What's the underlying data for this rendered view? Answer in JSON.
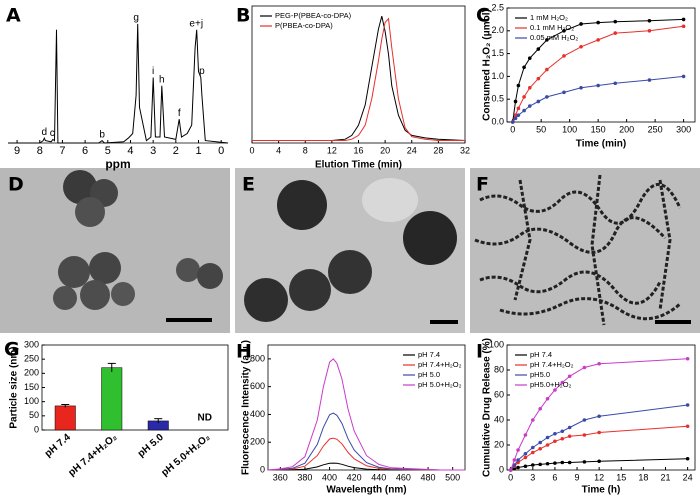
{
  "image_panels": [
    "D",
    "E",
    "F"
  ],
  "chart_data": [
    {
      "type": "line",
      "label": "A",
      "xlabel": "ppm",
      "x": [
        9.4,
        8.0,
        7.85,
        7.8,
        7.75,
        7.5,
        7.42,
        7.35,
        7.26,
        7.2,
        5.4,
        5.25,
        5.15,
        4.3,
        4.1,
        4.0,
        3.9,
        3.75,
        3.68,
        3.6,
        3.3,
        3.1,
        3.0,
        2.9,
        2.7,
        2.62,
        2.5,
        2.0,
        1.85,
        1.75,
        1.5,
        1.3,
        1.15,
        1.08,
        1.0,
        0.9,
        0.85,
        0.7,
        -0.3
      ],
      "values": [
        0,
        0,
        2,
        4,
        2,
        1,
        3,
        2,
        95,
        0,
        0,
        2,
        0,
        1,
        4,
        6,
        8,
        40,
        100,
        30,
        2,
        5,
        55,
        5,
        5,
        48,
        5,
        3,
        20,
        5,
        8,
        15,
        80,
        95,
        60,
        55,
        40,
        2,
        0
      ],
      "color": "#000000",
      "xlim": [
        9.4,
        -0.3
      ],
      "ylim": [
        0,
        115
      ],
      "xticks": [
        9,
        8,
        7,
        6,
        5,
        4,
        3,
        2,
        1,
        0
      ],
      "peak_labels": [
        {
          "text": "d",
          "x": 7.8
        },
        {
          "text": "c",
          "x": 7.45
        },
        {
          "text": "b",
          "x": 5.25
        },
        {
          "text": "g",
          "x": 3.75
        },
        {
          "text": "i",
          "x": 3.0
        },
        {
          "text": "h",
          "x": 2.62
        },
        {
          "text": "f",
          "x": 1.85
        },
        {
          "text": "e+j",
          "x": 1.1
        },
        {
          "text": "p",
          "x": 0.85
        }
      ]
    },
    {
      "type": "line",
      "label": "B",
      "xlabel": "Elution Time (min)",
      "x": [
        0,
        4,
        8,
        12,
        14,
        15,
        16,
        17,
        18,
        19,
        19.5,
        20,
        20.5,
        21,
        22,
        23,
        24,
        26,
        28,
        32
      ],
      "series": [
        {
          "name": "PEG-P(PBEA-co-DPA)",
          "color": "#000000",
          "values": [
            2,
            2,
            2,
            2,
            3,
            6,
            14,
            30,
            60,
            90,
            100,
            88,
            70,
            45,
            22,
            10,
            6,
            4,
            3,
            2
          ]
        },
        {
          "name": "P(PBEA-co-DPA)",
          "color": "#e8302a",
          "values": [
            2,
            2,
            2,
            2,
            2,
            3,
            6,
            14,
            35,
            65,
            82,
            95,
            98,
            75,
            35,
            12,
            5,
            3,
            2,
            2
          ]
        }
      ],
      "xlim": [
        0,
        32
      ],
      "ylim": [
        0,
        108
      ],
      "xticks": [
        0,
        4,
        8,
        12,
        16,
        20,
        24,
        28,
        32
      ],
      "legend": "upper left"
    },
    {
      "type": "line",
      "label": "C",
      "xlabel": "Time (min)",
      "ylabel": "Consumed H₂O₂ (μmol)",
      "x": [
        0,
        5,
        10,
        20,
        30,
        45,
        60,
        90,
        120,
        150,
        180,
        240,
        300
      ],
      "series": [
        {
          "name": "1 mM H₂O₂",
          "color": "#000000",
          "values": [
            0,
            0.45,
            0.8,
            1.2,
            1.4,
            1.6,
            1.8,
            2.0,
            2.15,
            2.18,
            2.2,
            2.22,
            2.25
          ]
        },
        {
          "name": "0.1 mM H₂O₂",
          "color": "#e8302a",
          "values": [
            0,
            0.15,
            0.3,
            0.55,
            0.75,
            0.95,
            1.15,
            1.45,
            1.65,
            1.8,
            1.95,
            2.0,
            2.1
          ]
        },
        {
          "name": "0.05 mM H₂O₂",
          "color": "#3a4aa8",
          "values": [
            0,
            0.08,
            0.15,
            0.25,
            0.35,
            0.45,
            0.55,
            0.65,
            0.75,
            0.8,
            0.85,
            0.92,
            1.0
          ]
        }
      ],
      "xlim": [
        -10,
        320
      ],
      "ylim": [
        0,
        2.5
      ],
      "xticks": [
        0,
        50,
        100,
        150,
        200,
        250,
        300
      ],
      "yticks": [
        {
          "value": 0,
          "label": "0.0"
        },
        0.5,
        {
          "value": 1,
          "label": "1.0"
        },
        1.5,
        {
          "value": 2,
          "label": "2.0"
        },
        2.5
      ],
      "markers": true,
      "legend": "upper left"
    },
    {
      "type": "bar",
      "label": "G",
      "ylabel": "Particle size (nm)",
      "categories": [
        "pH 7.4",
        "pH 7.4+H₂O₂",
        "pH 5.0",
        "pH 5.0+H₂O₂"
      ],
      "values": [
        85,
        220,
        32,
        null
      ],
      "errors": [
        5,
        15,
        8,
        null
      ],
      "value_labels": [
        null,
        null,
        null,
        "ND"
      ],
      "colors": [
        "#e8261e",
        "#2fbf2f",
        "#2a2aa8",
        "#888888"
      ],
      "ylim": [
        0,
        300
      ],
      "yticks": [
        0,
        50,
        100,
        150,
        200,
        250,
        300
      ]
    },
    {
      "type": "line",
      "label": "H",
      "xlabel": "Wavelength (nm)",
      "ylabel": "Fluorescence Intensity (a.u.)",
      "x": [
        350,
        360,
        370,
        380,
        390,
        395,
        400,
        403,
        406,
        410,
        415,
        420,
        430,
        440,
        450,
        470,
        490,
        510
      ],
      "series": [
        {
          "name": "pH 7.4",
          "color": "#000000",
          "values": [
            0,
            0.5,
            1.5,
            6,
            22.5,
            37.5,
            48.5,
            50,
            48,
            41,
            27.5,
            17.5,
            6.5,
            2.5,
            1,
            0.5,
            0,
            0
          ]
        },
        {
          "name": "pH 7.4+H₂O₂",
          "color": "#e8302a",
          "values": [
            0,
            2.3,
            6.9,
            27.6,
            103.5,
            172.5,
            223.1,
            230,
            220.8,
            188.6,
            126.5,
            80.5,
            29.9,
            11.5,
            4.6,
            2.3,
            0,
            0
          ]
        },
        {
          "name": "pH 5.0",
          "color": "#3a4aa8",
          "values": [
            0,
            4.1,
            12.3,
            49.2,
            184.5,
            307.5,
            397.7,
            410,
            393.6,
            336.2,
            225.5,
            143.5,
            53.3,
            20.5,
            8.2,
            4.1,
            0,
            0
          ]
        },
        {
          "name": "pH 5.0+H₂O₂",
          "color": "#c83cc8",
          "values": [
            0,
            8,
            24,
            96,
            360,
            600,
            776,
            800,
            768,
            656,
            440,
            280,
            104,
            40,
            16,
            8,
            0,
            0
          ]
        }
      ],
      "xlim": [
        350,
        510
      ],
      "ylim": [
        0,
        900
      ],
      "xticks": [
        360,
        380,
        400,
        420,
        440,
        460,
        480,
        500
      ],
      "yticks": [
        0,
        200,
        400,
        600,
        800
      ],
      "legend": "upper right"
    },
    {
      "type": "line",
      "label": "I",
      "xlabel": "Time (h)",
      "ylabel": "Cumulative Drug Release (%)",
      "x": [
        0,
        0.5,
        1,
        2,
        3,
        4,
        5,
        6,
        7,
        8,
        10,
        12,
        24
      ],
      "series": [
        {
          "name": "pH 7.4",
          "color": "#000000",
          "values": [
            0,
            1,
            2,
            3,
            4,
            4.5,
            5,
            5.5,
            6,
            6,
            6.5,
            7,
            9
          ]
        },
        {
          "name": "pH 7.4+H₂O₂",
          "color": "#e8302a",
          "values": [
            0,
            3,
            6,
            10,
            14,
            17,
            20,
            23,
            25,
            27,
            28,
            30,
            35
          ]
        },
        {
          "name": "pH5.0",
          "color": "#3a4aa8",
          "values": [
            0,
            4,
            8,
            13,
            18,
            22,
            26,
            29,
            31,
            34,
            40,
            43,
            52
          ]
        },
        {
          "name": "pH5.0+H₂O₂",
          "color": "#c83cc8",
          "values": [
            0,
            8,
            16,
            28,
            40,
            49,
            57,
            64,
            70,
            75,
            82,
            85,
            89
          ]
        }
      ],
      "xlim": [
        -0.5,
        25
      ],
      "ylim": [
        0,
        100
      ],
      "xticks": [
        0,
        3,
        6,
        9,
        12,
        15,
        18,
        21,
        24
      ],
      "yticks": [
        0,
        20,
        40,
        60,
        80,
        100
      ],
      "markers": true,
      "legend": "upper left"
    }
  ]
}
